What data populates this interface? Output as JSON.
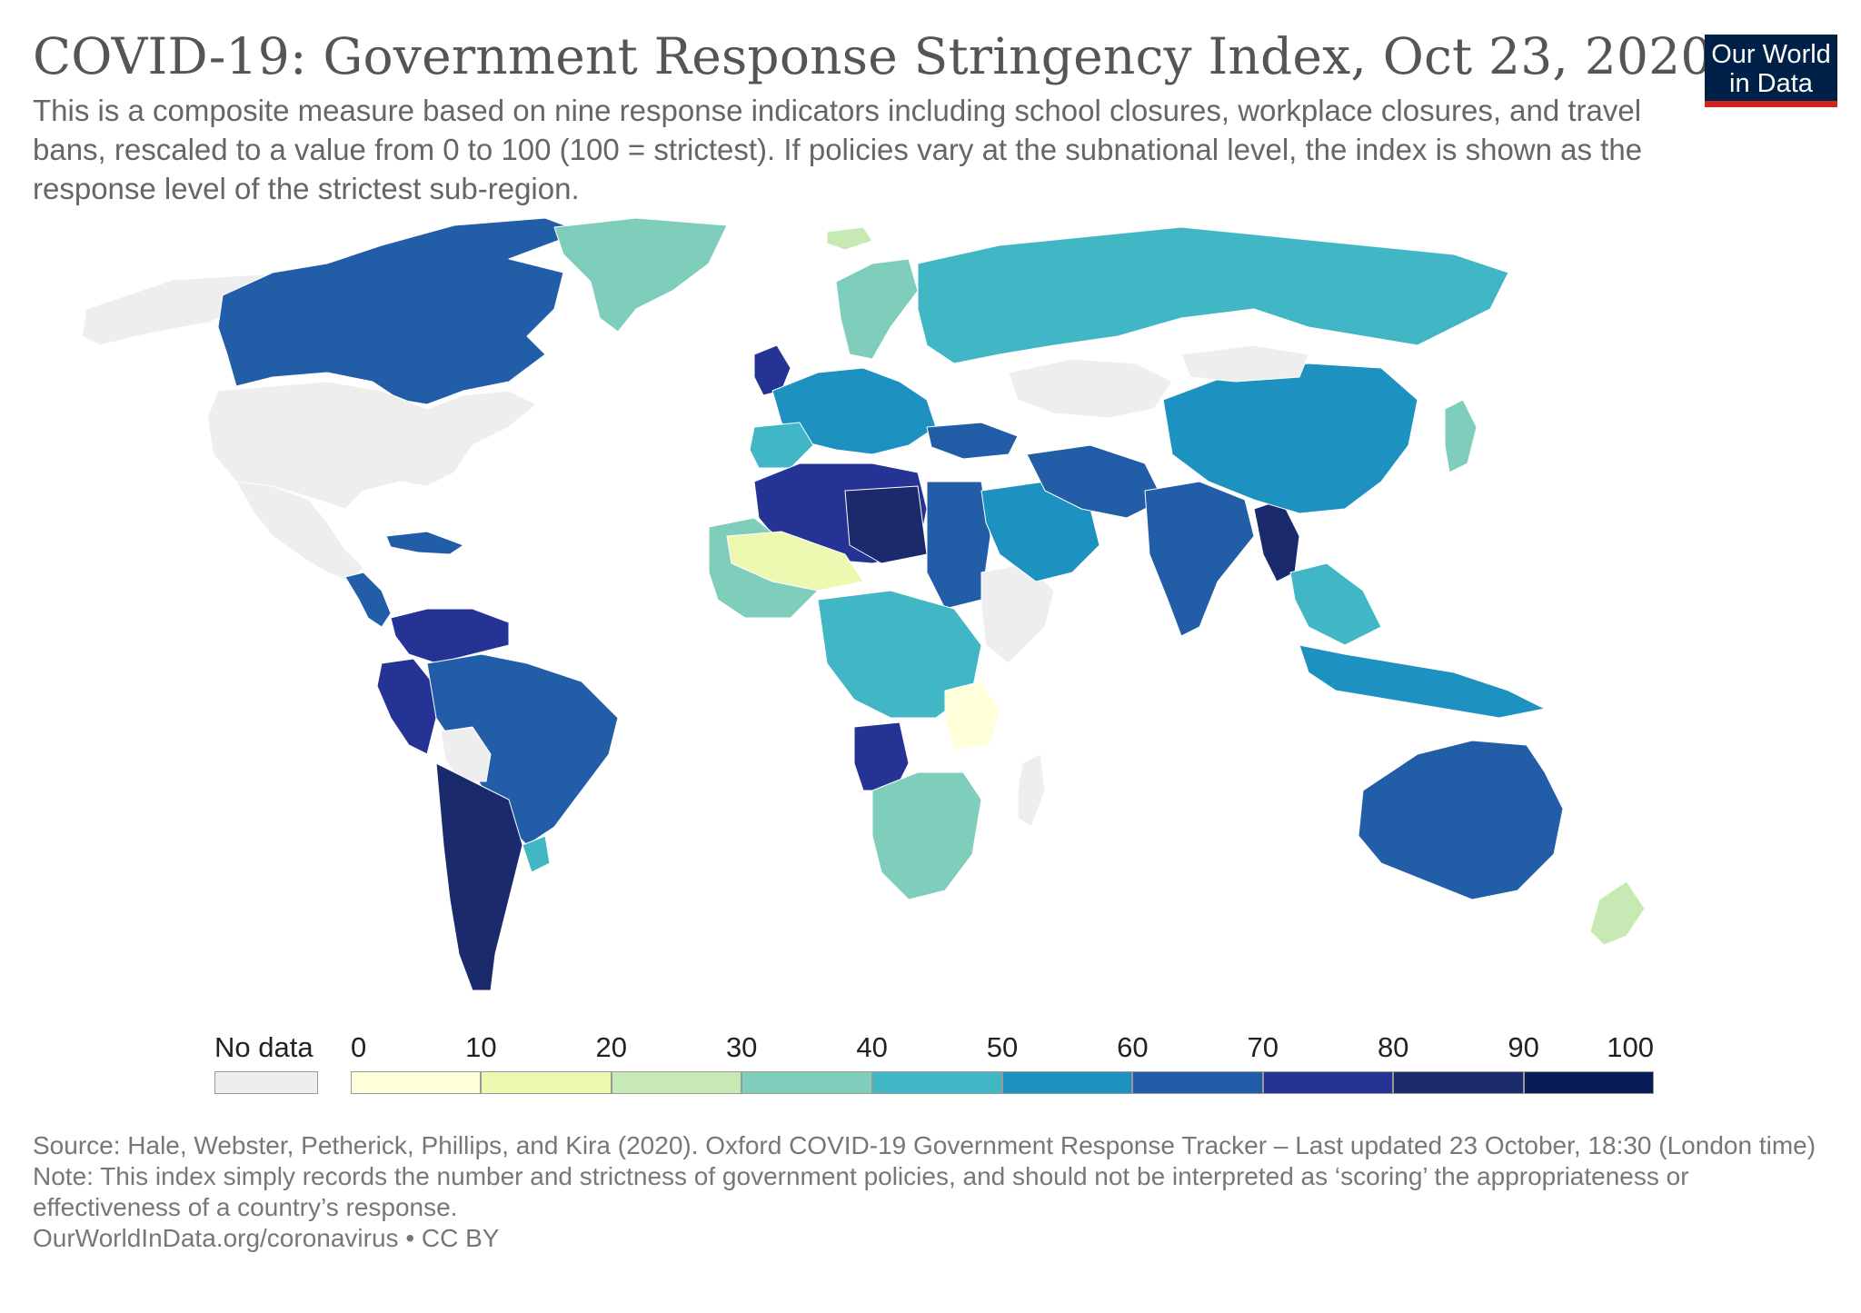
{
  "title": "COVID-19: Government Response Stringency Index, Oct 23, 2020",
  "subtitle": "This is a composite measure based on nine response indicators including school closures, workplace closures, and travel bans, rescaled to a value from 0 to 100 (100 = strictest). If policies vary at the subnational level, the index is shown as the response level of the strictest sub-region.",
  "logo": {
    "line1": "Our World",
    "line2": "in Data"
  },
  "legend": {
    "no_data_label": "No data",
    "no_data_color": "#eeeeee",
    "ticks": [
      "0",
      "10",
      "20",
      "30",
      "40",
      "50",
      "60",
      "70",
      "80",
      "90",
      "100"
    ],
    "bin_colors": [
      "#ffffd9",
      "#edf8b1",
      "#c7e9b4",
      "#7fcdbb",
      "#41b6c4",
      "#1d91c0",
      "#225ea8",
      "#253494",
      "#1a2a6c",
      "#081d58"
    ]
  },
  "footer": {
    "source": "Source: Hale, Webster, Petherick, Phillips, and Kira (2020). Oxford COVID-19 Government Response Tracker – Last updated 23 October, 18:30 (London time)",
    "note": "Note: This index simply records the number and strictness of government policies, and should not be interpreted as ‘scoring’ the appropriateness or effectiveness of a country’s response.",
    "url": "OurWorldInData.org/coronavirus • CC BY"
  },
  "map_colors": {
    "no_data": "#eeeeee",
    "bins": [
      "#ffffd9",
      "#edf8b1",
      "#c7e9b4",
      "#7fcdbb",
      "#41b6c4",
      "#1d91c0",
      "#225ea8",
      "#253494",
      "#1a2a6c",
      "#081d58"
    ]
  }
}
